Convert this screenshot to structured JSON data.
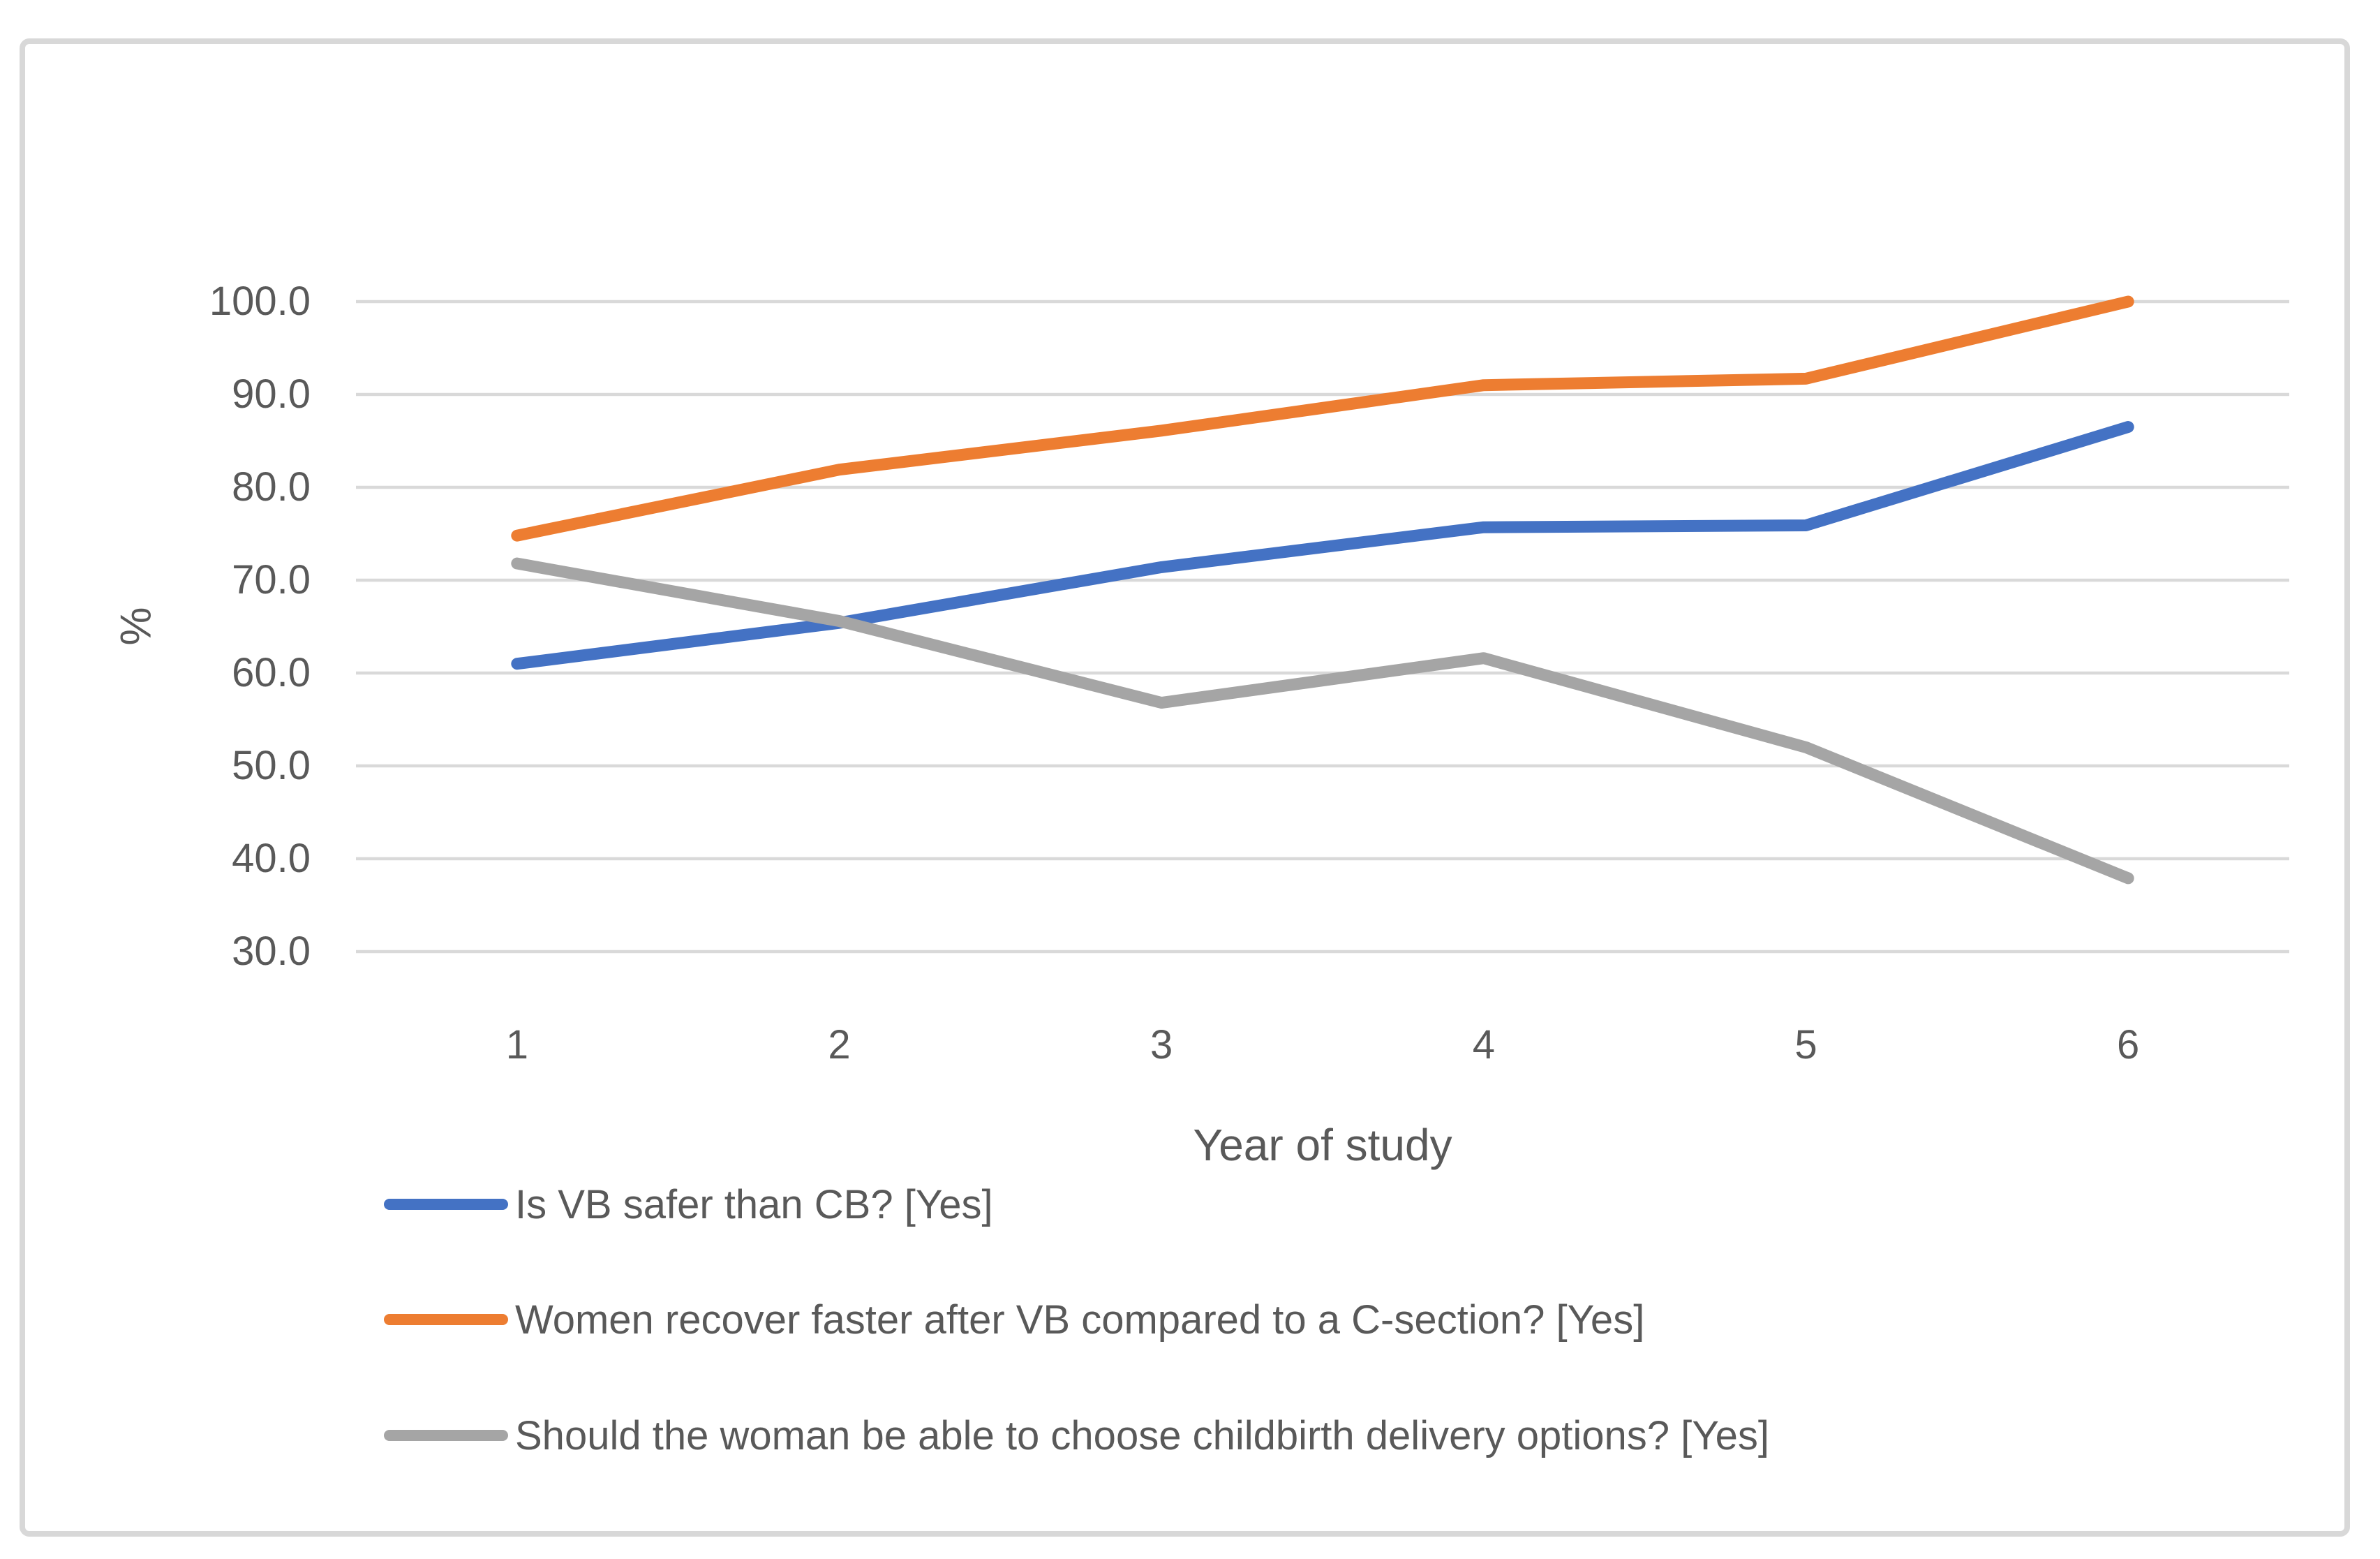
{
  "chart_data": {
    "type": "line",
    "title": "",
    "xlabel": "Year of study",
    "ylabel": "%",
    "categories": [
      "1",
      "2",
      "3",
      "4",
      "5",
      "6"
    ],
    "series": [
      {
        "name": "Is VB safer than CB? [Yes]",
        "color": "#4472C4",
        "values": [
          61.0,
          65.4,
          71.4,
          75.7,
          75.9,
          86.5
        ]
      },
      {
        "name": "Women recover faster after VB compared to a C-section? [Yes]",
        "color": "#ED7D31",
        "values": [
          74.8,
          81.9,
          86.1,
          91.0,
          91.7,
          100.0
        ]
      },
      {
        "name": "Should the woman be able to choose childbirth delivery options? [Yes]",
        "color": "#A5A5A5",
        "values": [
          71.8,
          65.6,
          56.8,
          61.6,
          52.0,
          37.9
        ]
      }
    ],
    "ylim": [
      30,
      100
    ],
    "yticks": [
      100,
      90,
      80,
      70,
      60,
      50,
      40,
      30
    ],
    "ytick_labels": [
      "100.0",
      "90.0",
      "80.0",
      "70.0",
      "60.0",
      "50.0",
      "40.0",
      "30.0"
    ],
    "grid": "horizontal-only",
    "legend_position": "bottom-left",
    "colors": {
      "gridline": "#d9d9d9",
      "frame_border": "#d8d8d8",
      "text": "#595959"
    }
  }
}
